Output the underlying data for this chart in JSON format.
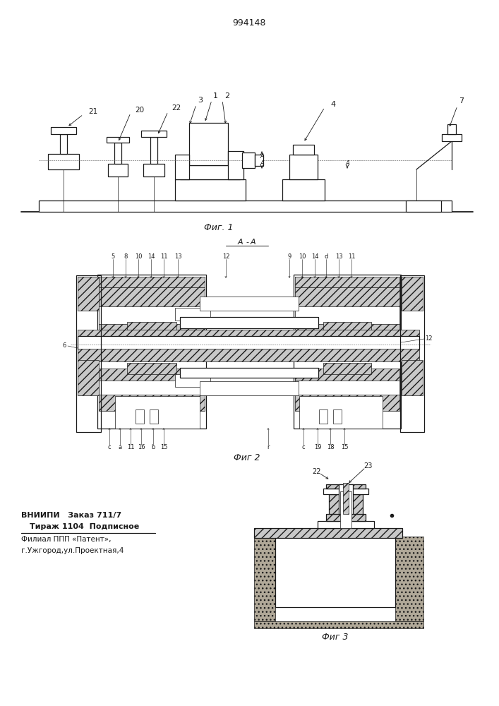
{
  "patent_number": "994148",
  "fig1_caption": "Фиг. 1",
  "fig2_caption": "Фиг 2",
  "fig3_caption": "Фиг 3",
  "section_label": "A-A",
  "bottom_text_line1": "ВНИИПИ   Заказ 711/7",
  "bottom_text_line2": "Тираж 1104  Подписное",
  "bottom_text_line3": "Филиал ППП «Патент»,",
  "bottom_text_line4": "г.Ужгород,ул.Проектная,4",
  "line_color": "#1a1a1a",
  "hatch_fc": "#c8c8c8"
}
